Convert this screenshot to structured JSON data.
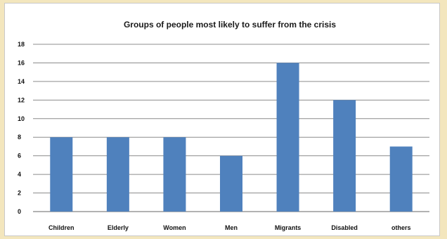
{
  "chart_data": {
    "type": "bar",
    "title": "Groups of people most likely to suffer from the crisis",
    "xlabel": "",
    "ylabel": "",
    "categories": [
      "Children",
      "Elderly",
      "Women",
      "Men",
      "Migrants",
      "Disabled",
      "others"
    ],
    "values": [
      8,
      8,
      8,
      6,
      16,
      12,
      7
    ],
    "ylim": [
      0,
      18
    ],
    "yticks": [
      0,
      2,
      4,
      6,
      8,
      10,
      12,
      14,
      16,
      18
    ],
    "grid": true,
    "legend": "none",
    "colors": {
      "bar": "#4f81bd",
      "grid": "#8c8c8c",
      "axis": "#666666"
    }
  }
}
